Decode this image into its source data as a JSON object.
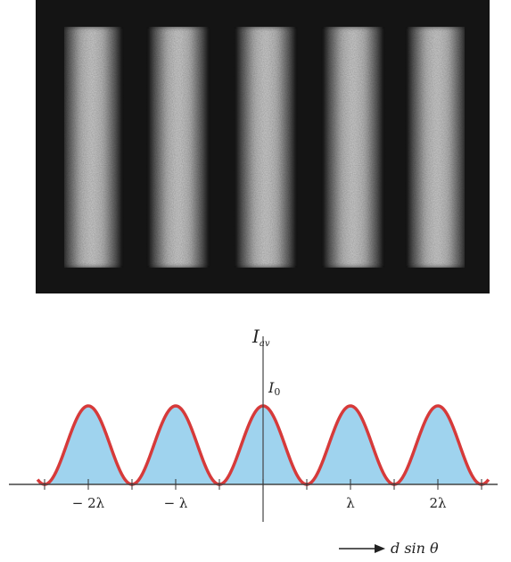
{
  "figure": {
    "photo": {
      "fringe_count": 5,
      "background_color": "#151515",
      "fringe_color": "#cfcfcf"
    },
    "plot": {
      "y_axis_label": "I",
      "y_axis_label_subscript": "av",
      "peak_label": "I",
      "peak_label_subscript": "0",
      "arrow_text": "d sin θ",
      "curve_color": "#d63a3a",
      "fill_color": "#9fd3ee"
    }
  },
  "chart_data": {
    "type": "line",
    "title": "",
    "xlabel": "d sin θ",
    "ylabel": "Iav",
    "x_unit": "λ",
    "xlim": [
      -2.5,
      2.5
    ],
    "ylim": [
      0,
      1
    ],
    "max_label": "I0",
    "tick_labels": [
      {
        "x": -2,
        "label": "− 2λ"
      },
      {
        "x": -1,
        "label": "− λ"
      },
      {
        "x": 1,
        "label": "λ"
      },
      {
        "x": 2,
        "label": "2λ"
      }
    ],
    "peaks_at": [
      -2,
      -1,
      0,
      1,
      2
    ],
    "zeros_at": [
      -2.5,
      -1.5,
      -0.5,
      0.5,
      1.5,
      2.5
    ],
    "series": [
      {
        "name": "",
        "shape": "cos² (πd sinθ / λ)",
        "peak_value": 1,
        "min_value": 0
      }
    ]
  }
}
